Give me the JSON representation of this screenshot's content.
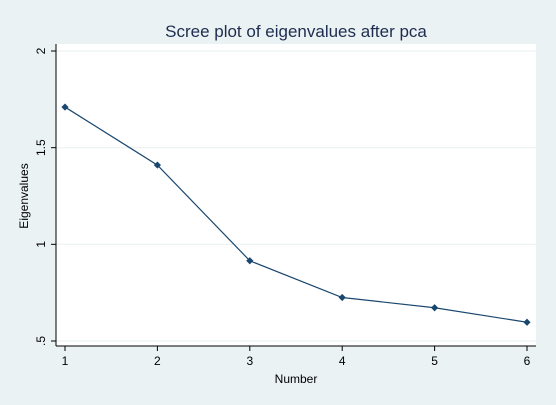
{
  "chart_data": {
    "type": "line",
    "title": "Scree plot of eigenvalues after pca",
    "xlabel": "Number",
    "ylabel": "Eigenvalues",
    "x": [
      1,
      2,
      3,
      4,
      5,
      6
    ],
    "y": [
      1.71,
      1.41,
      0.915,
      0.725,
      0.672,
      0.597
    ],
    "xticks": [
      1,
      2,
      3,
      4,
      5,
      6
    ],
    "yticks": [
      0.5,
      1,
      1.5,
      2
    ],
    "ytick_labels": [
      ".5",
      "1",
      "1.5",
      "2"
    ],
    "xlim": [
      0.9,
      6.1
    ],
    "ylim": [
      0.5,
      2.0
    ],
    "grid": "horizontal",
    "legend": "none",
    "colors": {
      "outer_background": "#eaf2f3",
      "plot_background": "#ffffff",
      "line": "#1a476f",
      "marker": "#1a476f",
      "text": "#000000",
      "title": "#1e2d4f",
      "grid": "#eaf2f3"
    }
  }
}
